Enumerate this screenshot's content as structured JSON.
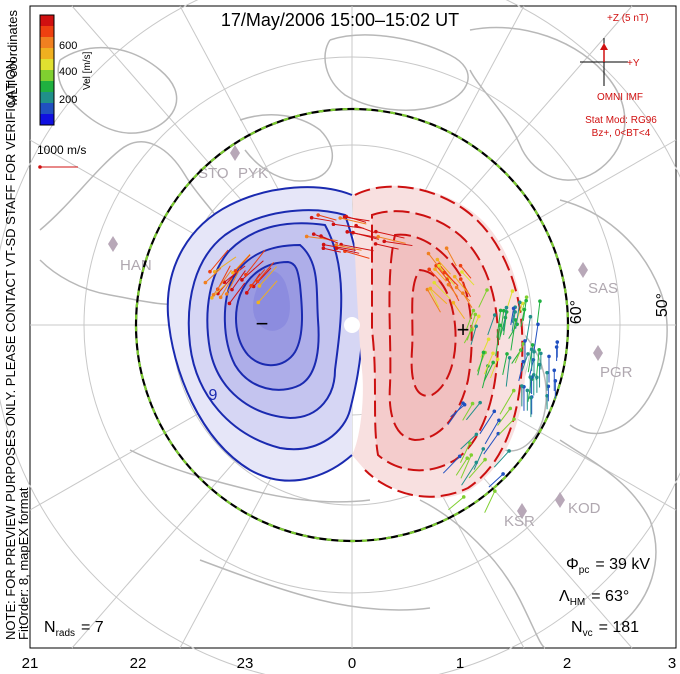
{
  "title": "17/May/2006 15:00–15:02 UT",
  "side_note": "NOTE: FOR PREVIEW PURPOSES ONLY. PLEASE CONTACT VT-SD STAFF FOR VERIFICATION.",
  "fit_order": "FitOrder: 8, mapEX format",
  "coord_label": "MLT coordinates",
  "colorbar": {
    "label": "Vel [m/s]",
    "ticks": [
      "600",
      "400",
      "200"
    ],
    "colors": [
      "#d01010",
      "#ee4010",
      "#f08020",
      "#f0b020",
      "#e0e030",
      "#80d030",
      "#20b040",
      "#20908a",
      "#2050c0",
      "#1010e0"
    ]
  },
  "reference_vector": "1000 m/s",
  "imf": {
    "z_label": "+Z (5 nT)",
    "y_label": "+Y",
    "source": "OMNI IMF",
    "stat_mod": "Stat Mod: RG96",
    "condition": "Bz+, 0<BT<4"
  },
  "latitude_labels": [
    "60°",
    "50°"
  ],
  "stations": [
    "STO",
    "PYK",
    "HAN",
    "SAS",
    "PGR",
    "KOD",
    "KSR"
  ],
  "potential_labels": {
    "min_marker": "−",
    "max_marker": "+",
    "contour_label": "9"
  },
  "stats": {
    "phi_symbol": "Φ",
    "phi_sub": "pc",
    "phi_value": "= 39 kV",
    "lambda_symbol": "Λ",
    "lambda_sub": "HM",
    "lambda_value": "= 63°",
    "nvc_symbol": "N",
    "nvc_sub": "vc",
    "nvc_value": "= 181",
    "nrads_symbol": "N",
    "nrads_sub": "rads",
    "nrads_value": "= 7"
  },
  "mlt_ticks": [
    "21",
    "22",
    "23",
    "0",
    "1",
    "2",
    "3"
  ],
  "colors": {
    "negative_fill": "#9a9ae8",
    "negative_line": "#1a2ab0",
    "positive_fill": "#f5cfd0",
    "positive_line": "#cc1010",
    "coast": "#b8b8b8",
    "grid": "#c8c8c8",
    "annotation": "#d01010"
  }
}
